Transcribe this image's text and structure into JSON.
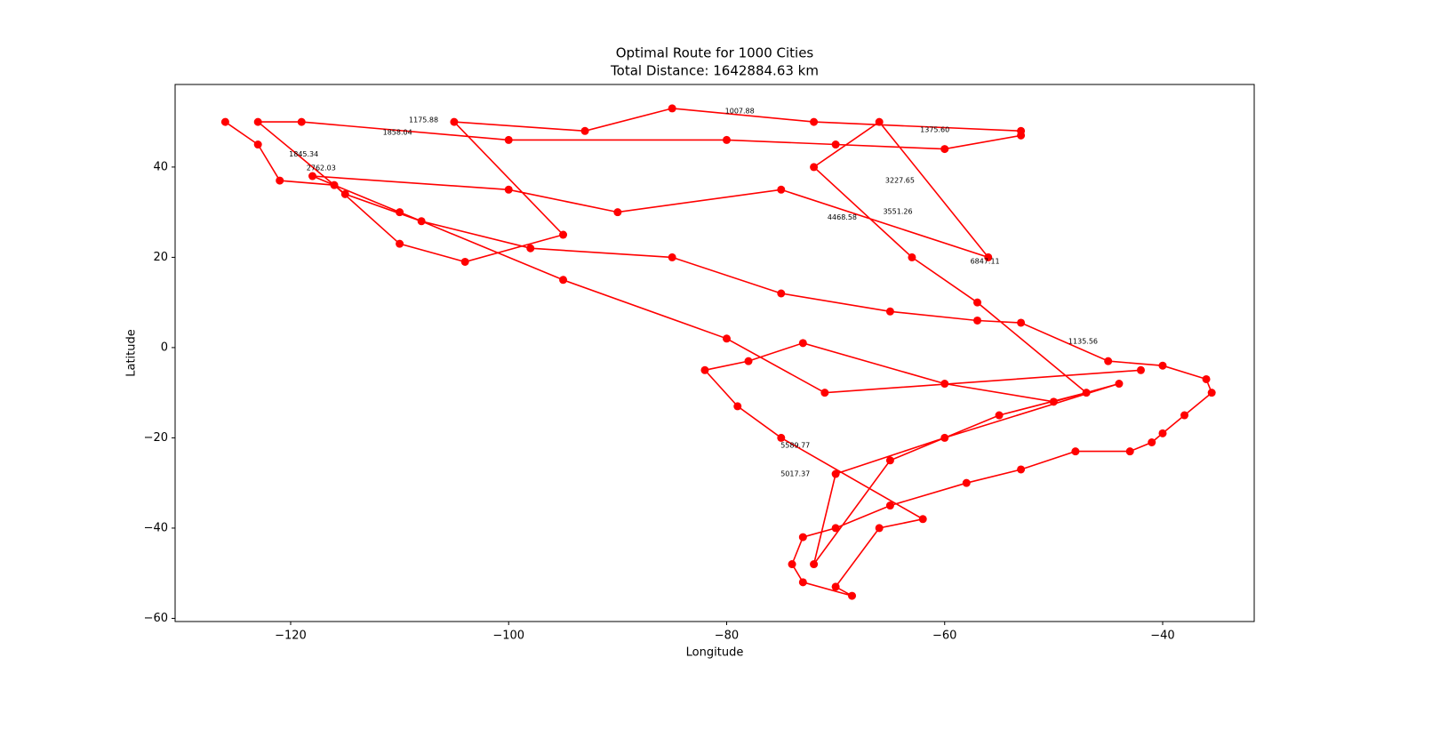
{
  "chart_data": {
    "type": "line",
    "title": "Optimal Route for 1000 Cities",
    "subtitle": "Total Distance: 1642884.63 km",
    "x_label": "Longitude",
    "y_label": "Latitude",
    "xlim": [
      -130.6,
      -31.6
    ],
    "ylim": [
      -60.7,
      58.3
    ],
    "xticks": [
      {
        "value": -120,
        "label": "−120"
      },
      {
        "value": -100,
        "label": "−100"
      },
      {
        "value": -80,
        "label": "−80"
      },
      {
        "value": -60,
        "label": "−60"
      },
      {
        "value": -40,
        "label": "−40"
      }
    ],
    "yticks": [
      {
        "value": -60,
        "label": "−60"
      },
      {
        "value": -40,
        "label": "−40"
      },
      {
        "value": -20,
        "label": "−20"
      },
      0,
      20,
      40
    ],
    "series": [
      {
        "color": "#ff0000",
        "x": [
          -126,
          -123,
          -121,
          -116,
          -110,
          -104,
          -95,
          -105,
          -93,
          -85,
          -72,
          -53,
          -53,
          -60,
          -70,
          -80,
          -100,
          -119,
          -123,
          -115,
          -108,
          -98,
          -85,
          -75,
          -65,
          -57,
          -53,
          -45,
          -40,
          -36,
          -35.5,
          -38,
          -40,
          -41,
          -43,
          -48,
          -53,
          -58,
          -65,
          -70,
          -73,
          -74,
          -73,
          -68.5,
          -70,
          -66,
          -62,
          -75,
          -79,
          -82,
          -78,
          -73,
          -60,
          -50,
          -44,
          -60,
          -70,
          -72,
          -65,
          -55,
          -47,
          -57,
          -63,
          -72,
          -66,
          -56,
          -75,
          -90,
          -100,
          -118,
          -110,
          -95,
          -80,
          -71,
          -42
        ],
        "y": [
          50,
          45,
          37,
          36,
          23,
          19,
          25,
          50,
          48,
          53,
          50,
          48,
          47,
          44,
          45,
          46,
          46,
          50,
          50,
          34,
          28,
          22,
          20,
          12,
          8,
          6,
          5.5,
          -3,
          -4,
          -7,
          -10,
          -15,
          -19,
          -21,
          -23,
          -23,
          -27,
          -30,
          -35,
          -40,
          -42,
          -48,
          -52,
          -55,
          -53,
          -40,
          -38,
          -20,
          -13,
          -5,
          -3,
          1,
          -8,
          -12,
          -8,
          -20,
          -28,
          -48,
          -25,
          -15,
          -10,
          10,
          20,
          40,
          50,
          20,
          35,
          30,
          35,
          38,
          30,
          15,
          2,
          -10,
          -5
        ]
      }
    ],
    "annotations": [
      {
        "x": -78.8,
        "y": 52.4,
        "text": "1007.88"
      },
      {
        "x": -107.8,
        "y": 50.4,
        "text": "1175.88"
      },
      {
        "x": -60.9,
        "y": 48.3,
        "text": "1375.60"
      },
      {
        "x": -110.2,
        "y": 47.7,
        "text": "1858.04"
      },
      {
        "x": -118.8,
        "y": 42.8,
        "text": "1845.34"
      },
      {
        "x": -117.2,
        "y": 39.8,
        "text": "2762.03"
      },
      {
        "x": -64.1,
        "y": 37.0,
        "text": "3227.65"
      },
      {
        "x": -64.3,
        "y": 30.1,
        "text": "3551.26"
      },
      {
        "x": -69.4,
        "y": 28.8,
        "text": "4468.58"
      },
      {
        "x": -56.3,
        "y": 19.1,
        "text": "6847.11"
      },
      {
        "x": -47.3,
        "y": 1.4,
        "text": "1135.56"
      },
      {
        "x": -73.7,
        "y": -21.7,
        "text": "5589.77"
      },
      {
        "x": -73.7,
        "y": -28.0,
        "text": "5017.37"
      }
    ]
  }
}
